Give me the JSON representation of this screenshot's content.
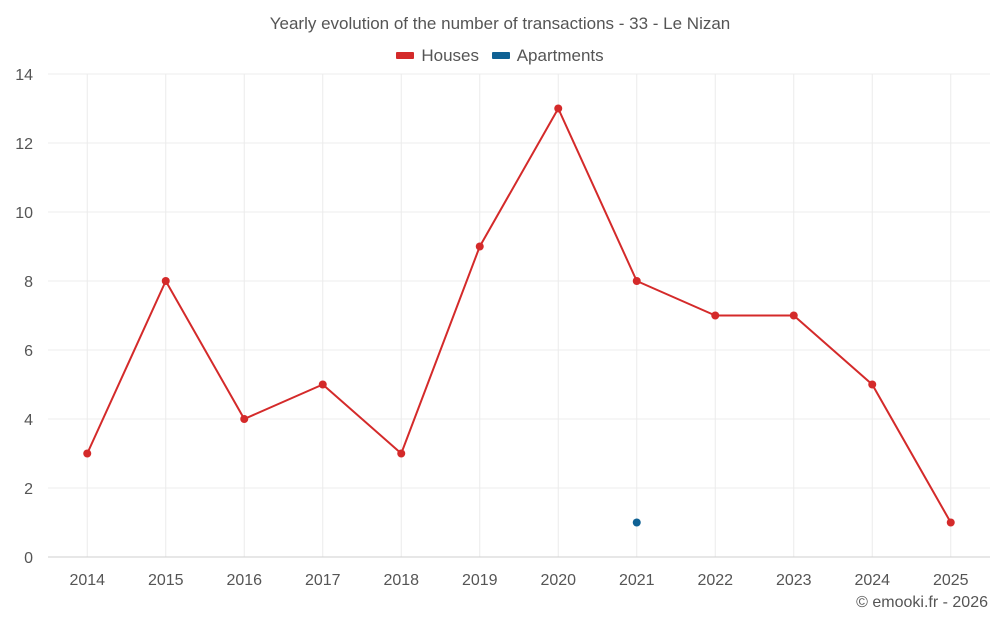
{
  "chart_data": {
    "type": "line",
    "title": "Yearly evolution of the number of transactions - 33 - Le Nizan",
    "x": [
      "2014",
      "2015",
      "2016",
      "2017",
      "2018",
      "2019",
      "2020",
      "2021",
      "2022",
      "2023",
      "2024",
      "2025"
    ],
    "series": [
      {
        "name": "Houses",
        "color": "#d42a2a",
        "values": [
          3,
          8,
          4,
          5,
          3,
          9,
          13,
          8,
          7,
          7,
          5,
          1
        ]
      },
      {
        "name": "Apartments",
        "color": "#0f6194",
        "values": [
          null,
          null,
          null,
          null,
          null,
          null,
          null,
          1,
          null,
          null,
          null,
          null
        ]
      }
    ],
    "ylim": [
      0,
      14
    ],
    "yticks": [
      0,
      2,
      4,
      6,
      8,
      10,
      12,
      14
    ],
    "xlabel": "",
    "ylabel": "",
    "grid": true,
    "legend_position": "top-center"
  },
  "credit": "© emooki.fr - 2026"
}
